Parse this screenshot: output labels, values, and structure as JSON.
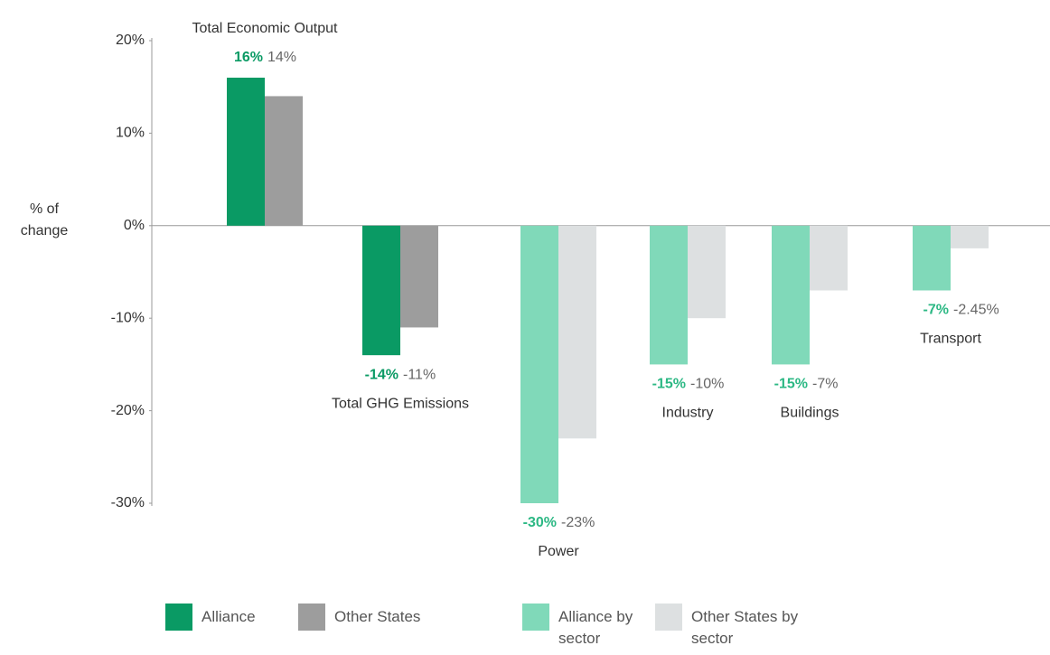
{
  "chart_data": {
    "type": "bar",
    "y_label": "% of change",
    "categories": [
      "Total Economic Output",
      "Total GHG Emissions",
      "Power",
      "Industry",
      "Buildings",
      "Transport"
    ],
    "series": [
      {
        "name": "Alliance",
        "color": "#0a9a64",
        "values": [
          16,
          -14,
          null,
          null,
          null,
          null
        ],
        "value_labels": [
          "16%",
          "-14%",
          null,
          null,
          null,
          null
        ]
      },
      {
        "name": "Other States",
        "color": "#9d9d9d",
        "values": [
          14,
          -11,
          null,
          null,
          null,
          null
        ],
        "value_labels": [
          "14%",
          "-11%",
          null,
          null,
          null,
          null
        ]
      },
      {
        "name": "Alliance by sector",
        "color": "#80d9b9",
        "values": [
          null,
          null,
          -30,
          -15,
          -15,
          -7
        ],
        "value_labels": [
          null,
          null,
          "-30%",
          "-15%",
          "-15%",
          "-7%"
        ]
      },
      {
        "name": "Other States by sector",
        "color": "#dde0e1",
        "values": [
          null,
          null,
          -23,
          -10,
          -7,
          -2.45
        ],
        "value_labels": [
          null,
          null,
          "-23%",
          "-10%",
          "-7%",
          "-2.45%"
        ]
      }
    ],
    "ylim": [
      -30,
      20
    ],
    "yticks": [
      {
        "value": 20,
        "label": "20%"
      },
      {
        "value": 10,
        "label": "10%"
      },
      {
        "value": 0,
        "label": "0%"
      },
      {
        "value": -10,
        "label": "-10%"
      },
      {
        "value": -20,
        "label": "-20%"
      },
      {
        "value": -30,
        "label": "-30%"
      }
    ],
    "grid": false
  }
}
